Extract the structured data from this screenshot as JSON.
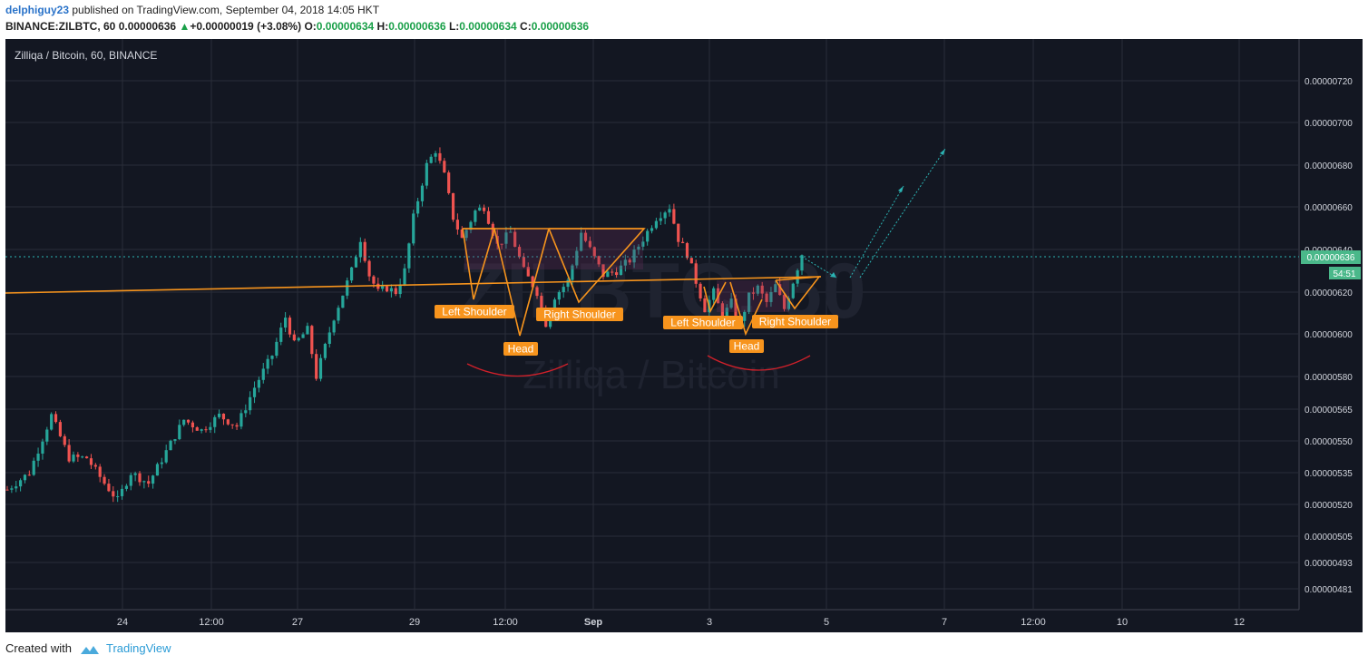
{
  "header": {
    "author": "delphiguy23",
    "published_text": "published on TradingView.com, September 04, 2018 14:05 HKT",
    "symbol": "BINANCE:ZILBTC, 60",
    "last": "0.00000636",
    "change_arrow": "▲",
    "change": "+0.00000019 (+3.08%)",
    "o_label": "O:",
    "o": "0.00000634",
    "h_label": "H:",
    "h": "0.00000636",
    "l_label": "L:",
    "l": "0.00000634",
    "c_label": "C:",
    "c": "0.00000636"
  },
  "footer": {
    "created_with": "Created with",
    "brand": "TradingView",
    "logo_icon": "tradingview-cloud-icon"
  },
  "colors": {
    "background": "#131722",
    "grid": "#2a2e39",
    "up": "#26a69a",
    "down": "#ef5350",
    "pattern_line": "#f7941d",
    "label_bg": "#f7941d",
    "arc": "#d0202a",
    "projection": "#2bb3b3",
    "price_tag": "#4ab88a"
  },
  "chart_data": {
    "type": "candlestick",
    "title": "Zilliqa / Bitcoin, 60, BINANCE",
    "watermark_symbol": "ZILBTC, 60",
    "watermark_name": "Zilliqa / Bitcoin",
    "y_ticks": [
      "0.00000720",
      "0.00000700",
      "0.00000680",
      "0.00000660",
      "0.00000640",
      "0.00000620",
      "0.00000600",
      "0.00000580",
      "0.00000565",
      "0.00000550",
      "0.00000535",
      "0.00000520",
      "0.00000505",
      "0.00000493",
      "0.00000481"
    ],
    "x_ticks": [
      "24",
      "12:00",
      "27",
      "29",
      "12:00",
      "Sep",
      "3",
      "5",
      "7",
      "12:00",
      "10",
      "12"
    ],
    "last_price_label": "0.00000636",
    "countdown_label": "54:51",
    "close_path": [
      [
        0,
        5.27
      ],
      [
        5,
        5.35
      ],
      [
        10,
        5.62
      ],
      [
        14,
        5.42
      ],
      [
        18,
        5.42
      ],
      [
        22,
        5.3
      ],
      [
        25,
        5.22
      ],
      [
        28,
        5.35
      ],
      [
        32,
        5.3
      ],
      [
        36,
        5.45
      ],
      [
        40,
        5.6
      ],
      [
        44,
        5.55
      ],
      [
        48,
        5.62
      ],
      [
        52,
        5.57
      ],
      [
        56,
        5.75
      ],
      [
        60,
        5.9
      ],
      [
        63,
        6.08
      ],
      [
        65,
        5.95
      ],
      [
        68,
        6.02
      ],
      [
        70,
        5.8
      ],
      [
        74,
        6.08
      ],
      [
        78,
        6.3
      ],
      [
        80,
        6.45
      ],
      [
        82,
        6.28
      ],
      [
        84,
        6.2
      ],
      [
        86,
        6.22
      ],
      [
        88,
        6.2
      ],
      [
        90,
        6.3
      ],
      [
        92,
        6.55
      ],
      [
        95,
        6.8
      ],
      [
        97,
        6.87
      ],
      [
        99,
        6.75
      ],
      [
        101,
        6.55
      ],
      [
        103,
        6.45
      ],
      [
        106,
        6.58
      ],
      [
        108,
        6.6
      ],
      [
        111,
        6.42
      ],
      [
        114,
        6.48
      ],
      [
        117,
        6.3
      ],
      [
        120,
        6.2
      ],
      [
        122,
        6.05
      ],
      [
        124,
        6.18
      ],
      [
        127,
        6.25
      ],
      [
        130,
        6.48
      ],
      [
        132,
        6.4
      ],
      [
        135,
        6.28
      ],
      [
        138,
        6.3
      ],
      [
        141,
        6.35
      ],
      [
        144,
        6.45
      ],
      [
        147,
        6.55
      ],
      [
        150,
        6.6
      ],
      [
        152,
        6.45
      ],
      [
        154,
        6.38
      ],
      [
        156,
        6.25
      ],
      [
        158,
        6.12
      ],
      [
        160,
        6.2
      ],
      [
        162,
        6.08
      ],
      [
        164,
        6.15
      ],
      [
        166,
        6.05
      ],
      [
        168,
        6.18
      ],
      [
        170,
        6.22
      ],
      [
        172,
        6.15
      ],
      [
        174,
        6.23
      ],
      [
        176,
        6.12
      ],
      [
        178,
        6.25
      ],
      [
        180,
        6.38
      ]
    ],
    "annotations": {
      "labels": [
        "Left Shoulder",
        "Head",
        "Right Shoulder",
        "Left Shoulder",
        "Head",
        "Right Shoulder"
      ]
    }
  }
}
